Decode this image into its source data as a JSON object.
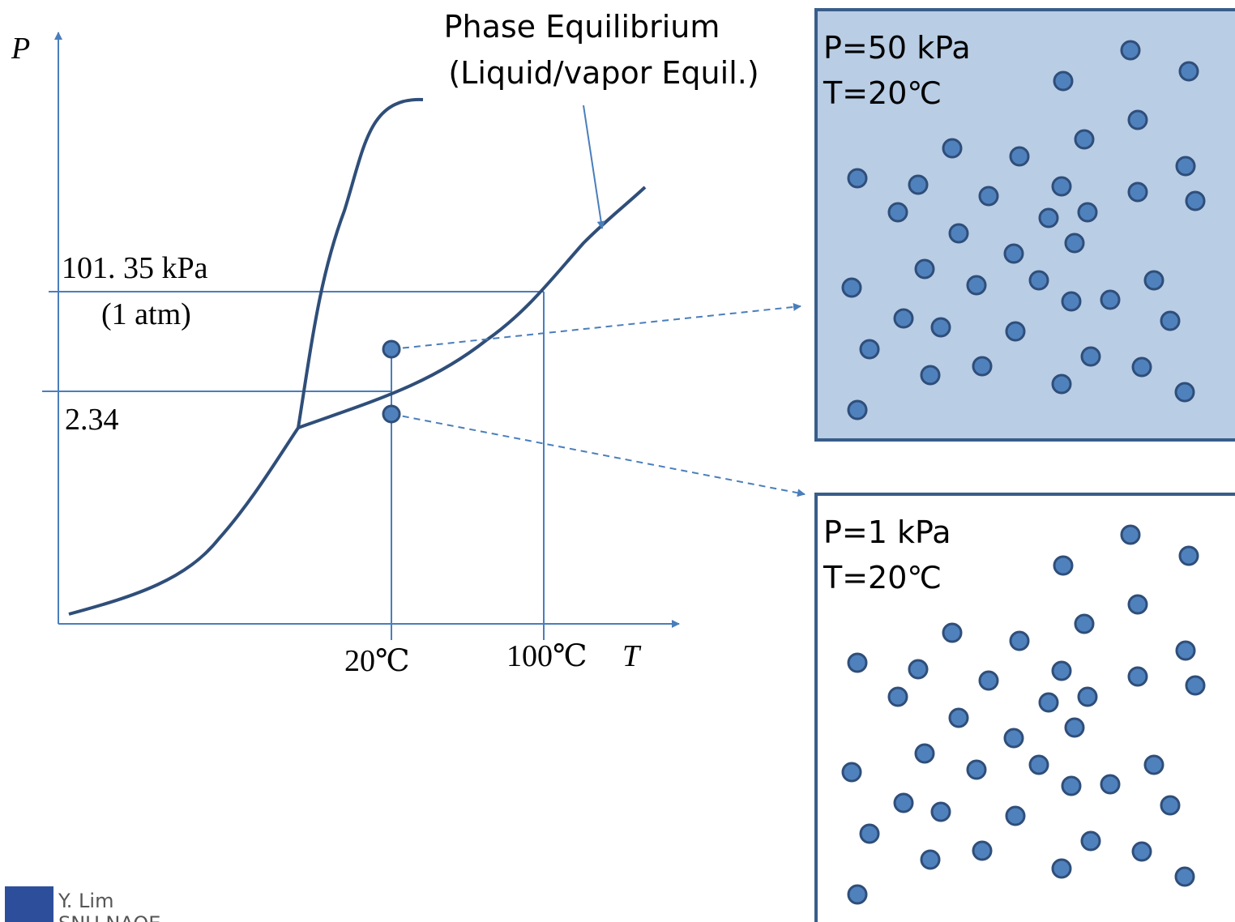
{
  "diagram": {
    "axis_p": "P",
    "axis_t": "T",
    "p_atm": "101. 35 kPa",
    "p_atm_note": "(1 atm)",
    "p_sat": "2.34",
    "t_20": "20℃",
    "t_100": "100℃",
    "callout": [
      "Phase Equilibrium",
      "(Liquid/vapor Equil.)"
    ],
    "boxes": [
      {
        "pressure": "P=50 kPa",
        "temperature": "T=20℃"
      },
      {
        "pressure": "P=1 kPa",
        "temperature": "T=20℃"
      }
    ],
    "footer": {
      "author": "Y. Lim",
      "org": "SNU NAOE"
    }
  }
}
